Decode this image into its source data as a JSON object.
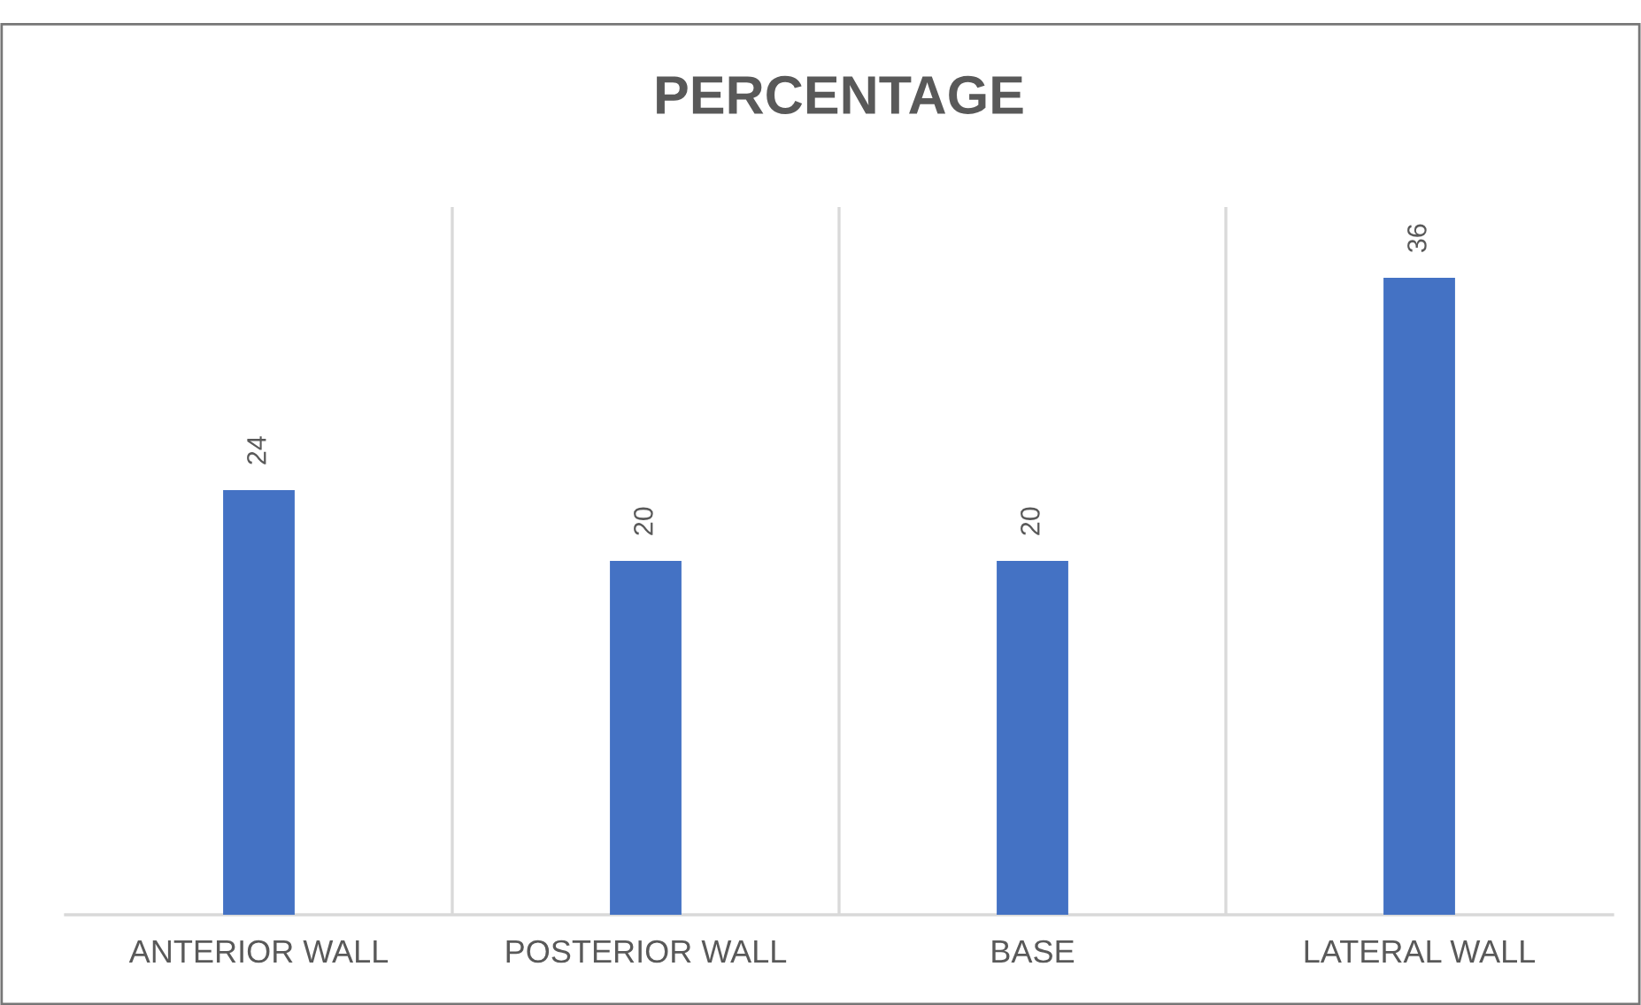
{
  "chart_data": {
    "type": "bar",
    "title": "PERCENTAGE",
    "categories": [
      "ANTERIOR WALL",
      "POSTERIOR WALL",
      "BASE",
      "LATERAL WALL"
    ],
    "values": [
      24,
      20,
      20,
      36
    ],
    "color": "#4472c4",
    "ylim": [
      0,
      40
    ],
    "data_labels": true,
    "grid": "x",
    "tick_labels": "x"
  }
}
